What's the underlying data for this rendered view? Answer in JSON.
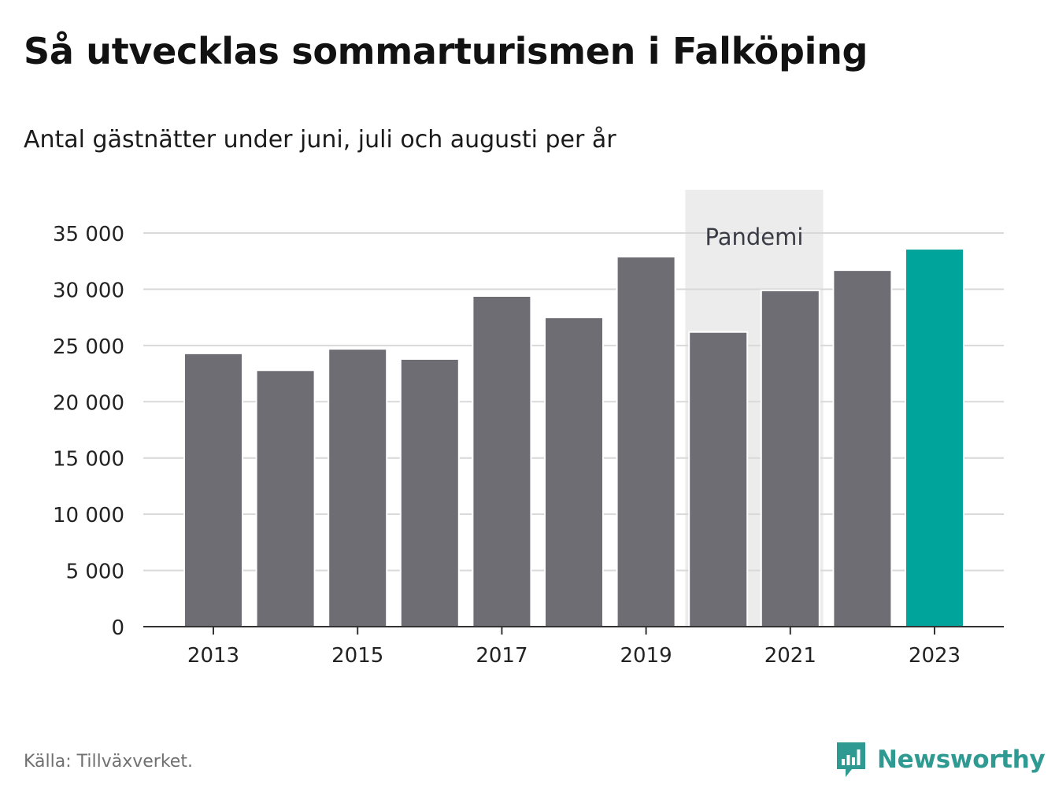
{
  "header": {
    "title": "Så utvecklas sommarturismen i Falköping",
    "subtitle": "Antal gästnätter under juni, juli och augusti per år"
  },
  "footer": {
    "source": "Källa: Tillväxverket.",
    "brand": "Newsworthy"
  },
  "colors": {
    "bar": "#6e6d74",
    "highlight": "#00a49a",
    "band": "#ececec",
    "grid": "#d9d9d9",
    "brand": "#2e9a91"
  },
  "chart_data": {
    "type": "bar",
    "categories": [
      "2013",
      "2014",
      "2015",
      "2016",
      "2017",
      "2018",
      "2019",
      "2020",
      "2021",
      "2022",
      "2023"
    ],
    "values": [
      24300,
      22800,
      24700,
      23800,
      29400,
      27500,
      32900,
      26200,
      29900,
      31700,
      33600
    ],
    "highlight_category": "2023",
    "x_tick_labels": [
      "2013",
      "2015",
      "2017",
      "2019",
      "2021",
      "2023"
    ],
    "y_tick_labels": [
      "0",
      "5 000",
      "10 000",
      "15 000",
      "20 000",
      "25 000",
      "30 000",
      "35 000"
    ],
    "y_ticks": [
      0,
      5000,
      10000,
      15000,
      20000,
      25000,
      30000,
      35000
    ],
    "ylim": [
      0,
      35000
    ],
    "grid": true,
    "annotation": {
      "label": "Pandemi",
      "from": "2020",
      "to": "2021"
    }
  }
}
